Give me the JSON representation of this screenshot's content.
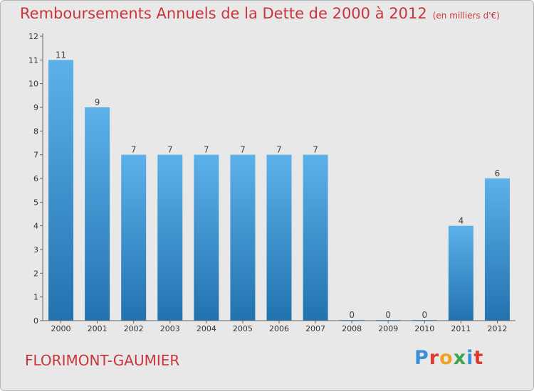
{
  "header": {
    "title": "Remboursements Annuels de la Dette de 2000 à 2012",
    "subtitle": "(en milliers d'€)"
  },
  "footer": {
    "commune": "FLORIMONT-GAUMIER",
    "logo_text": "Proxiti"
  },
  "colors": {
    "bar_top": "#5db1ea",
    "bar_bottom": "#2272b0",
    "title": "#c8363c",
    "background": "#e8e8e8"
  },
  "chart_data": {
    "type": "bar",
    "title": "Remboursements Annuels de la Dette de 2000 à 2012",
    "subtitle": "(en milliers d'€)",
    "xlabel": "",
    "ylabel": "",
    "categories": [
      "2000",
      "2001",
      "2002",
      "2003",
      "2004",
      "2005",
      "2006",
      "2007",
      "2008",
      "2009",
      "2010",
      "2011",
      "2012"
    ],
    "values": [
      11,
      9,
      7,
      7,
      7,
      7,
      7,
      7,
      0,
      0,
      0,
      4,
      6
    ],
    "ylim": [
      0,
      12
    ],
    "yticks": [
      0,
      1,
      2,
      3,
      4,
      5,
      6,
      7,
      8,
      9,
      10,
      11,
      12
    ],
    "grid": false,
    "legend": "none",
    "data_labels": true
  }
}
